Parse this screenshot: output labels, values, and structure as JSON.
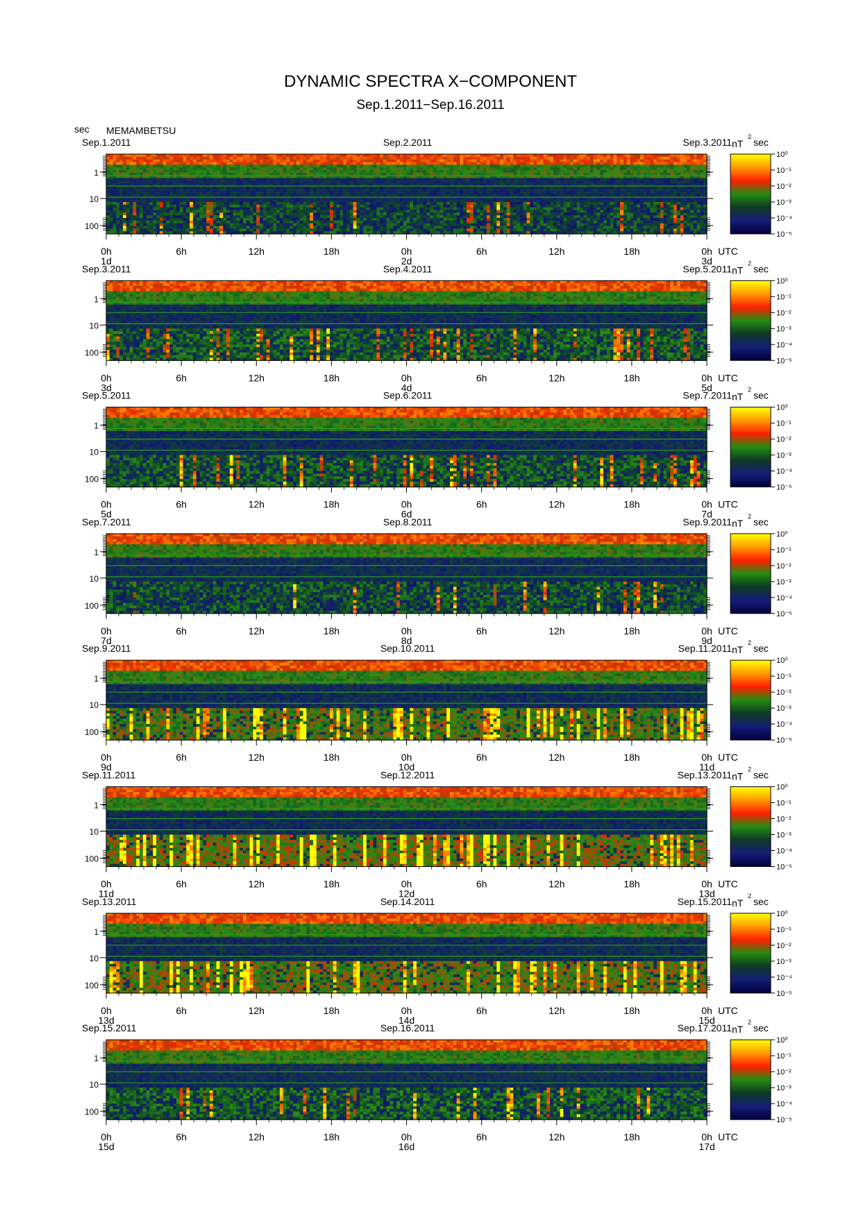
{
  "title": "DYNAMIC SPECTRA X−COMPONENT",
  "subtitle": "Sep.1.2011−Sep.16.2011",
  "yunit": "sec",
  "station": "MEMAMBETSU",
  "colorbar_unit": "nT",
  "colorbar_unit_exp": "2",
  "colorbar_unit_tail": "sec",
  "chart_data": {
    "type": "heatmap",
    "title": "DYNAMIC SPECTRA X−COMPONENT",
    "subtitle": "Sep.1.2011−Sep.16.2011",
    "station": "MEMAMBETSU",
    "ylabel": "sec",
    "y_scale": "log",
    "y_direction": "increasing downward",
    "y_ticks": [
      "1",
      "10",
      "100"
    ],
    "x_ticks": [
      "0h",
      "6h",
      "12h",
      "18h",
      "0h",
      "6h",
      "12h",
      "18h",
      "0h"
    ],
    "x_unit_label": "UTC",
    "colorbar": {
      "unit": "nT²sec",
      "ticks": [
        "10⁰",
        "10⁻¹",
        "10⁻²",
        "10⁻³",
        "10⁻⁴",
        "10⁻⁵"
      ],
      "colors": [
        "#ffff00",
        "#ff9a00",
        "#ff1e00",
        "#238c12",
        "#0f3a24",
        "#141e78",
        "#00003c"
      ]
    },
    "panels": [
      {
        "start_label": "Sep.1.2011",
        "mid_label": "Sep.2.2011",
        "end_label": "Sep.3.2011",
        "day_labels": [
          "1d",
          "2d",
          "3d"
        ],
        "activity": 0.25
      },
      {
        "start_label": "Sep.3.2011",
        "mid_label": "Sep.4.2011",
        "end_label": "Sep.5.2011",
        "day_labels": [
          "3d",
          "4d",
          "5d"
        ],
        "activity": 0.4
      },
      {
        "start_label": "Sep.5.2011",
        "mid_label": "Sep.6.2011",
        "end_label": "Sep.7.2011",
        "day_labels": [
          "5d",
          "6d",
          "7d"
        ],
        "activity": 0.35
      },
      {
        "start_label": "Sep.7.2011",
        "mid_label": "Sep.8.2011",
        "end_label": "Sep.9.2011",
        "day_labels": [
          "7d",
          "8d",
          "9d"
        ],
        "activity": 0.3
      },
      {
        "start_label": "Sep.9.2011",
        "mid_label": "Sep.10.2011",
        "end_label": "Sep.11.2011",
        "day_labels": [
          "9d",
          "10d",
          "11d"
        ],
        "activity": 0.75
      },
      {
        "start_label": "Sep.11.2011",
        "mid_label": "Sep.12.2011",
        "end_label": "Sep.13.2011",
        "day_labels": [
          "11d",
          "12d",
          "13d"
        ],
        "activity": 0.85
      },
      {
        "start_label": "Sep.13.2011",
        "mid_label": "Sep.14.2011",
        "end_label": "Sep.15.2011",
        "day_labels": [
          "13d",
          "14d",
          "15d"
        ],
        "activity": 0.8
      },
      {
        "start_label": "Sep.15.2011",
        "mid_label": "Sep.16.2011",
        "end_label": "Sep.17.2011",
        "day_labels": [
          "15d",
          "16d",
          "17d"
        ],
        "activity": 0.4
      }
    ]
  }
}
